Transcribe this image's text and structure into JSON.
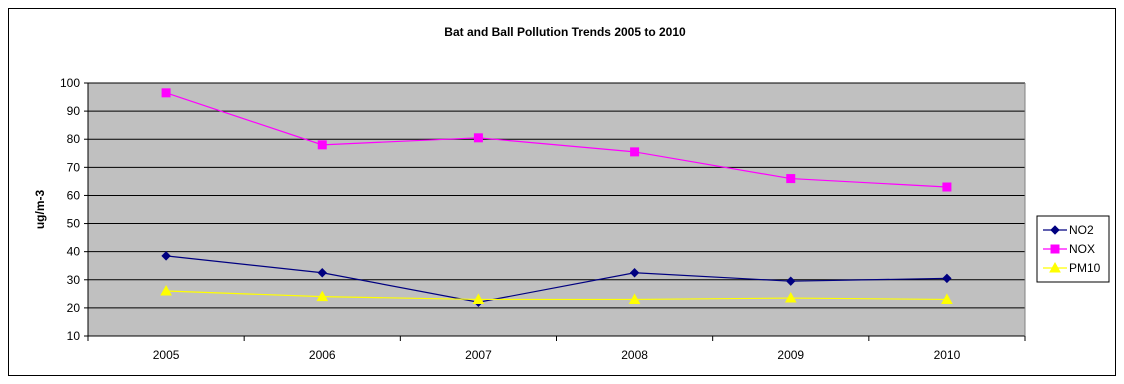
{
  "chart_data": {
    "type": "line",
    "title": "Bat and Ball Pollution Trends 2005 to 2010",
    "xlabel": "",
    "ylabel": "ug/m-3",
    "categories": [
      "2005",
      "2006",
      "2007",
      "2008",
      "2009",
      "2010"
    ],
    "ylim": [
      10,
      100
    ],
    "yticks": [
      10,
      20,
      30,
      40,
      50,
      60,
      70,
      80,
      90,
      100
    ],
    "grid": true,
    "legend_position": "right",
    "plot_background": "#c0c0c0",
    "series": [
      {
        "name": "NO2",
        "color": "#000080",
        "marker": "diamond",
        "values": [
          38.5,
          32.5,
          22,
          32.5,
          29.5,
          30.5
        ]
      },
      {
        "name": "NOX",
        "color": "#ff00ff",
        "marker": "square",
        "values": [
          96.5,
          78,
          80.5,
          75.5,
          66,
          63
        ]
      },
      {
        "name": "PM10",
        "color": "#ffff00",
        "marker": "triangle",
        "values": [
          26,
          24,
          23,
          23,
          23.5,
          23
        ]
      }
    ]
  }
}
